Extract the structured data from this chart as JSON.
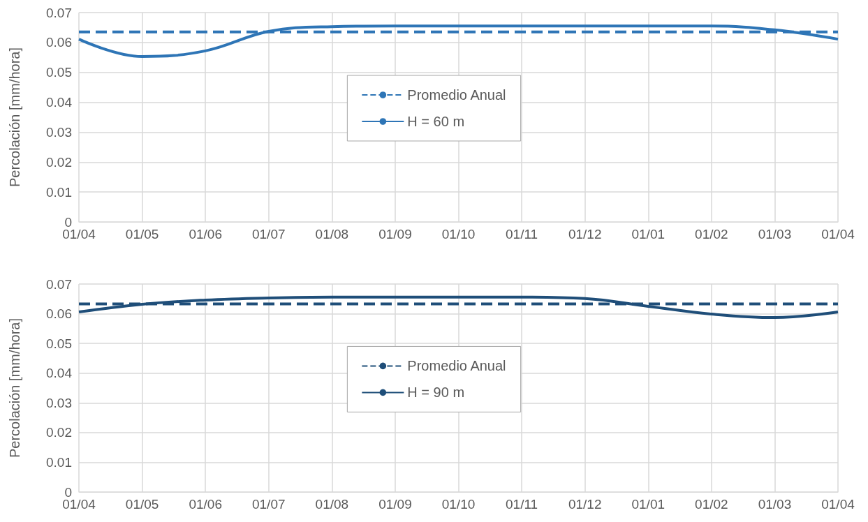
{
  "chart_data": [
    {
      "type": "line",
      "ylabel": "Percolación [mm/hora]",
      "categories": [
        "01/04",
        "01/05",
        "01/06",
        "01/07",
        "01/08",
        "01/09",
        "01/10",
        "01/11",
        "01/12",
        "01/01",
        "01/02",
        "01/03",
        "01/04"
      ],
      "ylim": [
        0,
        0.07
      ],
      "yticks": [
        0,
        0.01,
        0.02,
        0.03,
        0.04,
        0.05,
        0.06,
        0.07
      ],
      "grid": true,
      "legend": "center",
      "marker": "none",
      "series": [
        {
          "name": "Promedio Anual",
          "color": "#2e75b6",
          "line_style": "dashed",
          "values": [
            0.0635,
            0.0635,
            0.0635,
            0.0635,
            0.0635,
            0.0635,
            0.0635,
            0.0635,
            0.0635,
            0.0635,
            0.0635,
            0.0635,
            0.0635
          ]
        },
        {
          "name": "H = 60 m",
          "color": "#2e75b6",
          "line_style": "solid",
          "values": [
            0.0611,
            0.0553,
            0.0572,
            0.0637,
            0.0653,
            0.0655,
            0.0655,
            0.0655,
            0.0655,
            0.0655,
            0.0655,
            0.0642,
            0.0611
          ]
        }
      ]
    },
    {
      "type": "line",
      "ylabel": "Percolación [mm/hora]",
      "categories": [
        "01/04",
        "01/05",
        "01/06",
        "01/07",
        "01/08",
        "01/09",
        "01/10",
        "01/11",
        "01/12",
        "01/01",
        "01/02",
        "01/03",
        "01/04"
      ],
      "ylim": [
        0,
        0.07
      ],
      "yticks": [
        0,
        0.01,
        0.02,
        0.03,
        0.04,
        0.05,
        0.06,
        0.07
      ],
      "grid": true,
      "legend": "center",
      "marker": "none",
      "series": [
        {
          "name": "Promedio Anual",
          "color": "#1f4e79",
          "line_style": "dashed",
          "values": [
            0.0633,
            0.0633,
            0.0633,
            0.0633,
            0.0633,
            0.0633,
            0.0633,
            0.0633,
            0.0633,
            0.0633,
            0.0633,
            0.0633,
            0.0633
          ]
        },
        {
          "name": "H = 90 m",
          "color": "#1f4e79",
          "line_style": "solid",
          "values": [
            0.0606,
            0.0632,
            0.0646,
            0.0653,
            0.0656,
            0.0656,
            0.0656,
            0.0656,
            0.0651,
            0.0625,
            0.0599,
            0.0587,
            0.0606
          ]
        }
      ]
    }
  ]
}
